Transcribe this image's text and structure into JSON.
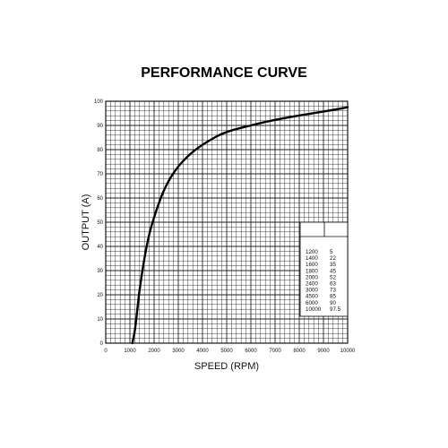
{
  "chart_data": {
    "type": "line",
    "title": "PERFORMANCE CURVE",
    "xlabel": "SPEED (RPM)",
    "ylabel": "OUTPUT (A)",
    "xlim": [
      0,
      10000
    ],
    "ylim": [
      0,
      100
    ],
    "x_ticks": [
      "0",
      "1000",
      "2000",
      "3000",
      "4000",
      "5000",
      "6000",
      "7000",
      "8000",
      "9000",
      "10000"
    ],
    "y_ticks": [
      "0",
      "10",
      "20",
      "30",
      "40",
      "50",
      "60",
      "70",
      "80",
      "90",
      "100"
    ],
    "grid": true,
    "series": [
      {
        "x": [
          1100,
          1200,
          1400,
          1600,
          1800,
          2000,
          2400,
          3000,
          4500,
          6000,
          10000
        ],
        "y": [
          0,
          5,
          22,
          35,
          45,
          52,
          63,
          73,
          85,
          90,
          97.5
        ]
      }
    ],
    "table": {
      "rows": [
        [
          "1200",
          "5"
        ],
        [
          "1400",
          "22"
        ],
        [
          "1600",
          "35"
        ],
        [
          "1800",
          "45"
        ],
        [
          "2000",
          "52"
        ],
        [
          "2400",
          "63"
        ],
        [
          "3000",
          "73"
        ],
        [
          "4500",
          "85"
        ],
        [
          "6000",
          "90"
        ],
        [
          "10000",
          "97.5"
        ]
      ]
    }
  }
}
